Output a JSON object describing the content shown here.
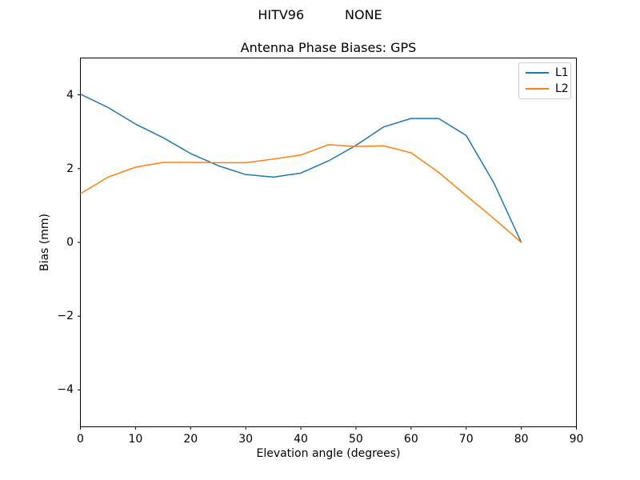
{
  "figure": {
    "suptitle": "HITV96          NONE"
  },
  "chart_data": {
    "type": "line",
    "title": "Antenna Phase Biases: GPS",
    "xlabel": "Elevation angle (degrees)",
    "ylabel": "Bias (mm)",
    "xlim": [
      0,
      90
    ],
    "ylim": [
      -5,
      5
    ],
    "xtick_values": [
      0,
      10,
      20,
      30,
      40,
      50,
      60,
      70,
      80,
      90
    ],
    "xtick_labels": [
      "0",
      "10",
      "20",
      "30",
      "40",
      "50",
      "60",
      "70",
      "80",
      "90"
    ],
    "ytick_values": [
      -4,
      -2,
      0,
      2,
      4
    ],
    "ytick_labels": [
      "−4",
      "−2",
      "0",
      "2",
      "4"
    ],
    "grid": false,
    "legend_position": "upper right",
    "x": [
      0,
      5,
      10,
      15,
      20,
      25,
      30,
      35,
      40,
      45,
      50,
      55,
      60,
      65,
      70,
      75,
      80
    ],
    "series": [
      {
        "name": "L1",
        "color": "#1f77b4",
        "values": [
          4.02,
          3.66,
          3.21,
          2.84,
          2.41,
          2.08,
          1.84,
          1.77,
          1.88,
          2.21,
          2.63,
          3.13,
          3.36,
          3.36,
          2.9,
          1.62,
          0.0
        ]
      },
      {
        "name": "L2",
        "color": "#ff7f0e",
        "values": [
          1.32,
          1.77,
          2.04,
          2.17,
          2.17,
          2.16,
          2.16,
          2.26,
          2.37,
          2.65,
          2.6,
          2.62,
          2.43,
          1.9,
          1.27,
          0.65,
          0.0
        ]
      }
    ],
    "axes_color": "#000000",
    "line_width": 1.5
  }
}
